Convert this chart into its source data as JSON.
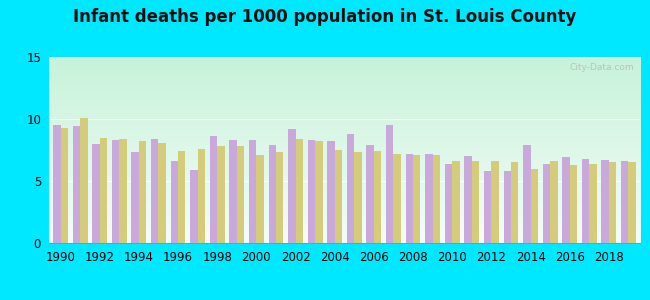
{
  "title": "Infant deaths per 1000 population in St. Louis County",
  "years": [
    1990,
    1991,
    1992,
    1993,
    1994,
    1995,
    1996,
    1997,
    1998,
    1999,
    2000,
    2001,
    2002,
    2003,
    2004,
    2005,
    2006,
    2007,
    2008,
    2009,
    2010,
    2011,
    2012,
    2013,
    2014,
    2015,
    2016,
    2017,
    2018,
    2019
  ],
  "stlouis": [
    9.5,
    9.4,
    8.0,
    8.3,
    7.3,
    8.4,
    6.6,
    5.9,
    8.6,
    8.3,
    8.3,
    7.9,
    9.2,
    8.3,
    8.2,
    8.8,
    7.9,
    9.5,
    7.2,
    7.2,
    6.4,
    7.0,
    5.8,
    5.8,
    7.9,
    6.4,
    6.9,
    6.8,
    6.7,
    6.6
  ],
  "missouri": [
    9.3,
    10.1,
    8.5,
    8.4,
    8.2,
    8.1,
    7.4,
    7.6,
    7.8,
    7.8,
    7.1,
    7.3,
    8.4,
    8.2,
    7.5,
    7.3,
    7.4,
    7.2,
    7.1,
    7.1,
    6.6,
    6.6,
    6.6,
    6.5,
    6.0,
    6.6,
    6.3,
    6.4,
    6.5,
    6.5
  ],
  "stlouis_color": "#c9a8dc",
  "missouri_color": "#d4cc7a",
  "ylim": [
    0,
    15
  ],
  "yticks": [
    0,
    5,
    10,
    15
  ],
  "outer_bg": "#00e8ff",
  "title_fontsize": 12,
  "bar_width": 0.38
}
